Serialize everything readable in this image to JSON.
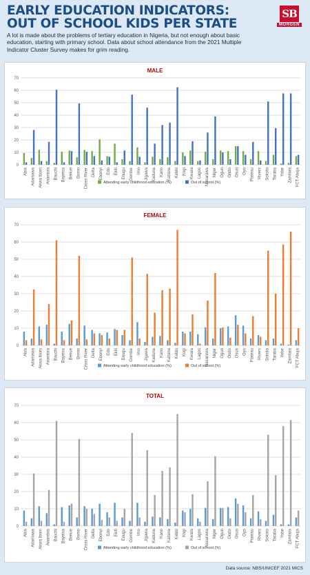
{
  "header": {
    "title_line1": "EARLY EDUCATION INDICATORS:",
    "title_line2": "OUT OF SCHOOL KIDS PER STATE",
    "subtitle": "A lot is made about the problems of tertiary education in Nigeria, but not enough about basic education, starting with primary school. Data about school attendance from the 2021 Multiple Indicator Cluster Survey makes for grim reading.",
    "logo_letters": "SB",
    "logo_word": "MORGEN"
  },
  "source": "Data source: NBS/UNICEF 2021 MICS",
  "colors": {
    "male_attending": "#70ad47",
    "male_out": "#4472c4",
    "female_attending": "#5b9bd5",
    "female_out": "#ed7d31",
    "total_attending": "#5b9bd5",
    "total_out": "#a5a5a5",
    "male_title": "#c00000",
    "female_title": "#c00000",
    "total_title": "#c00000"
  },
  "chart_data": [
    {
      "type": "bar",
      "title": "MALE",
      "ylim": [
        0,
        70
      ],
      "yticks": [
        0,
        10,
        20,
        30,
        40,
        50,
        60,
        70
      ],
      "grid": true,
      "legend_position": "bottom",
      "categories": [
        "Abia",
        "Adamawa",
        "Akwa Ibom",
        "Anambra",
        "Bauchi",
        "Bayelsa",
        "Benue",
        "Borno",
        "Cross River",
        "Delta",
        "Ebonyi",
        "Edo",
        "Ekiti",
        "Enugu",
        "Gombe",
        "Imo",
        "Jigawa",
        "Kaduna",
        "Kano",
        "Katsina",
        "Kebbi",
        "Kogi",
        "Kwara",
        "Lagos",
        "Nasarawa",
        "Niger",
        "Ogun",
        "Ondo",
        "Osun",
        "Oyo",
        "Plateau",
        "Rivers",
        "Sokoto",
        "Taraba",
        "Yobe",
        "Zamfara",
        "FCT Abuja"
      ],
      "series": [
        {
          "name": "Attending early childhood education (%)",
          "values": [
            9.5,
            5.5,
            12,
            3,
            1.5,
            10.5,
            11.5,
            6,
            12,
            11,
            20.5,
            7,
            17,
            4.5,
            3,
            14,
            2,
            6.5,
            4.5,
            6,
            3,
            10,
            11.5,
            3,
            10.5,
            4.5,
            11.5,
            11,
            15,
            11,
            4.5,
            11,
            3,
            8,
            1,
            1.5,
            7
          ]
        },
        {
          "name": "Out of school (%)",
          "values": [
            2,
            28,
            3,
            18.5,
            60.5,
            2,
            11,
            49.5,
            10.5,
            7,
            3.5,
            6.5,
            2,
            11.5,
            56.5,
            6.5,
            46,
            17,
            32,
            34,
            62.5,
            7,
            19,
            3.5,
            26,
            39,
            10,
            4.5,
            15,
            8,
            18.5,
            3.5,
            51,
            29.5,
            57.5,
            57.5,
            8
          ]
        }
      ]
    },
    {
      "type": "bar",
      "title": "FEMALE",
      "ylim": [
        0,
        70
      ],
      "yticks": [
        0,
        10,
        20,
        30,
        40,
        50,
        60,
        70
      ],
      "grid": true,
      "legend_position": "bottom",
      "categories": [
        "Abia",
        "Adamawa",
        "Akwa Ibom",
        "Anambra",
        "Bauchi",
        "Bayelsa",
        "Benue",
        "Borno",
        "Cross River",
        "Delta",
        "Ebonyi",
        "Edo",
        "Ekiti",
        "Enugu",
        "Gombe",
        "Imo",
        "Jigawa",
        "Kaduna",
        "Kano",
        "Katsina",
        "Kebbi",
        "Kogi",
        "Kwara",
        "Lagos",
        "Nasarawa",
        "Niger",
        "Ogun",
        "Ondo",
        "Osun",
        "Oyo",
        "Plateau",
        "Rivers",
        "Sokoto",
        "Taraba",
        "Yobe",
        "Zamfara",
        "FCT Abuja"
      ],
      "series": [
        {
          "name": "Attending early childhood education (%)",
          "values": [
            8,
            4,
            11,
            12,
            1,
            8,
            12.5,
            4,
            11.5,
            9,
            7,
            7.5,
            9.5,
            6,
            3,
            13.5,
            2,
            5,
            5.5,
            3,
            1.5,
            8,
            8,
            6.5,
            10.5,
            4,
            10,
            11,
            17.5,
            11.5,
            4,
            6,
            3,
            4,
            1,
            0.5,
            3
          ]
        },
        {
          "name": "Out of school (%)",
          "values": [
            3,
            32.5,
            3.5,
            24,
            61,
            3,
            14.5,
            52,
            3.5,
            7,
            6,
            4,
            9,
            9,
            51,
            4,
            41.5,
            19,
            32,
            33,
            67,
            7,
            18,
            1,
            26,
            42,
            10.5,
            4.5,
            12,
            7,
            17,
            5,
            55,
            30,
            58.5,
            66,
            10
          ]
        }
      ]
    },
    {
      "type": "bar",
      "title": "TOTAL",
      "ylim": [
        0,
        70
      ],
      "yticks": [
        0,
        10,
        20,
        30,
        40,
        50,
        60,
        70
      ],
      "grid": true,
      "legend_position": "bottom",
      "categories": [
        "Abia",
        "Adamawa",
        "Akwa Ibom",
        "Anambra",
        "Bauchi",
        "Bayelsa",
        "Benue",
        "Borno",
        "Cross River",
        "Delta",
        "Ebonyi",
        "Edo",
        "Ekiti",
        "Enugu",
        "Gombe",
        "Imo",
        "Jigawa",
        "Kaduna",
        "Kano",
        "Katsina",
        "Kebbi",
        "Kogi",
        "Kwara",
        "Lagos",
        "Nasarawa",
        "Niger",
        "Ogun",
        "Ondo",
        "Osun",
        "Oyo",
        "Plateau",
        "Rivers",
        "Sokoto",
        "Taraba",
        "Yobe",
        "Zamfara",
        "FCT Abuja"
      ],
      "series": [
        {
          "name": "Attending early childhood education (%)",
          "values": [
            9,
            4.5,
            11.5,
            7.5,
            1,
            11,
            12,
            5,
            11.5,
            10,
            13,
            8,
            13.5,
            5,
            3,
            13.5,
            2.5,
            5.5,
            5,
            4,
            2,
            9,
            10,
            4.5,
            10.5,
            4,
            10.5,
            11,
            16,
            12,
            4.5,
            8.5,
            3,
            6.5,
            1,
            1,
            5
          ]
        },
        {
          "name": "Out of school (%)",
          "values": [
            2.5,
            30.5,
            3,
            21,
            61,
            2.5,
            13,
            50.5,
            10,
            7,
            3.5,
            5,
            3,
            10,
            54,
            5,
            44,
            18,
            32,
            34,
            65,
            8,
            18.5,
            2.5,
            26,
            40.5,
            10.5,
            4.5,
            13,
            8,
            18,
            4,
            53,
            29.5,
            58,
            61.5,
            9
          ]
        }
      ]
    }
  ]
}
